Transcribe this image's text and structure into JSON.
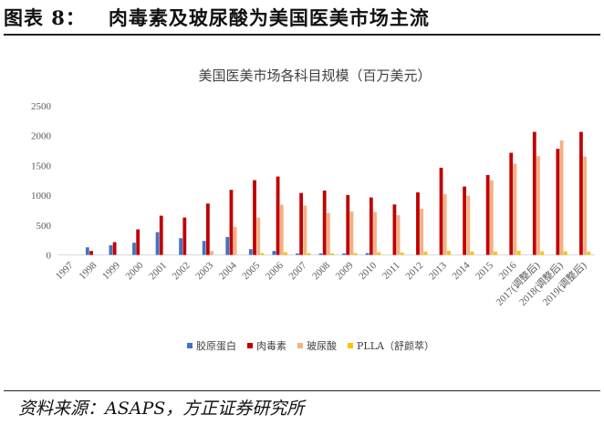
{
  "header": {
    "title": "图表 8：   肉毒素及玻尿酸为美国医美市场主流"
  },
  "footer": {
    "source": "资料来源：ASAPS，方正证券研究所"
  },
  "chart_data": {
    "type": "bar",
    "title": "美国医美市场各科目规模（百万美元）",
    "xlabel": "",
    "ylabel": "",
    "ylim": [
      0,
      2500
    ],
    "yticks": [
      0,
      500,
      1000,
      1500,
      2000,
      2500
    ],
    "grid": false,
    "legend": "bottom",
    "categories": [
      "1997",
      "1998",
      "1999",
      "2000",
      "2001",
      "2002",
      "2003",
      "2004",
      "2005",
      "2006",
      "2007",
      "2008",
      "2009",
      "2010",
      "2011",
      "2012",
      "2013",
      "2014",
      "2015",
      "2016",
      "2017(调整后)",
      "2018(调整后)",
      "2019(调整后)"
    ],
    "series": [
      {
        "name": "胶原蛋白",
        "color": "#4472C4",
        "values": [
          0,
          127,
          163,
          204,
          382,
          280,
          234,
          300,
          97,
          66,
          25,
          25,
          25,
          30,
          0,
          0,
          0,
          0,
          0,
          0,
          0,
          0,
          0
        ]
      },
      {
        "name": "肉毒素",
        "color": "#C00000",
        "values": [
          0,
          66,
          214,
          428,
          657,
          627,
          861,
          1090,
          1253,
          1314,
          1039,
          1080,
          1004,
          963,
          846,
          1049,
          1462,
          1146,
          1340,
          1712,
          2063,
          1778,
          2063
        ]
      },
      {
        "name": "玻尿酸",
        "color": "#F4B183",
        "values": [
          0,
          0,
          0,
          0,
          0,
          0,
          66,
          469,
          627,
          841,
          825,
          703,
          728,
          718,
          667,
          774,
          1019,
          993,
          1253,
          1528,
          1656,
          1920,
          1650
        ]
      },
      {
        "name": "PLLA（舒颜萃）",
        "color": "#FFC000",
        "values": [
          0,
          0,
          0,
          0,
          0,
          0,
          0,
          0,
          30,
          46,
          30,
          25,
          30,
          45,
          40,
          55,
          70,
          55,
          55,
          70,
          60,
          60,
          55
        ]
      }
    ]
  }
}
